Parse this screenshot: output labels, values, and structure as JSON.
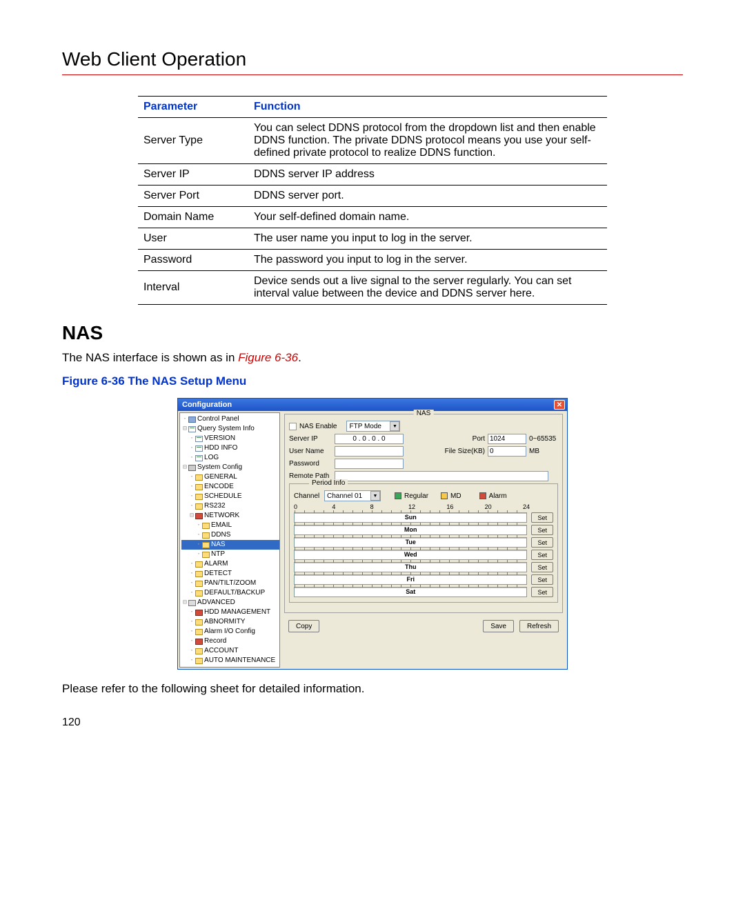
{
  "colors": {
    "accent_red": "#cc0000",
    "link_blue": "#0033cc",
    "win_titlebar_top": "#3b77e1",
    "win_titlebar_bottom": "#1e54c7",
    "win_body": "#ece9d8",
    "xp_close": "#e85232",
    "input_border": "#7f9db9",
    "sel_bg": "#316ac5",
    "folder_yellow": "#fddc7a",
    "folder_red": "#d24a3a",
    "swatch_green": "#3aa757",
    "swatch_yellow": "#f7c948",
    "swatch_red": "#d24a3a"
  },
  "page": {
    "title": "Web Client Operation",
    "section_heading": "NAS",
    "body_before_ref": "The NAS interface is shown as in ",
    "figure_ref": "Figure 6-36",
    "body_after_ref": ".",
    "figure_caption": "Figure 6-36 The NAS Setup Menu",
    "post_figure_text": "Please refer to the following sheet for detailed information.",
    "page_number": "120"
  },
  "table": {
    "headers": {
      "param": "Parameter",
      "func": "Function"
    },
    "rows": [
      {
        "param": "Server Type",
        "func": "You can select DDNS protocol from the dropdown list and then enable DDNS function. The private DDNS protocol means you use your self-defined private protocol to realize DDNS function."
      },
      {
        "param": "Server IP",
        "func": "DDNS server IP address"
      },
      {
        "param": "Server Port",
        "func": "DDNS server port."
      },
      {
        "param": "Domain Name",
        "func": "Your self-defined domain name."
      },
      {
        "param": "User",
        "func": "The user name you input to log in the server."
      },
      {
        "param": "Password",
        "func": "The password you input to log in the server."
      },
      {
        "param": "Interval",
        "func": "Device sends out a live signal to the server regularly. You can set interval value between the device and DDNS server here."
      }
    ]
  },
  "screenshot": {
    "window_title": "Configuration",
    "tree": {
      "root": "Control Panel",
      "groups": [
        {
          "label": "Query System Info",
          "icon": "page",
          "children": [
            {
              "label": "VERSION",
              "icon": "page"
            },
            {
              "label": "HDD INFO",
              "icon": "page"
            },
            {
              "label": "LOG",
              "icon": "page"
            }
          ]
        },
        {
          "label": "System Config",
          "icon": "tool",
          "children": [
            {
              "label": "GENERAL",
              "icon": "folder-y"
            },
            {
              "label": "ENCODE",
              "icon": "folder-y"
            },
            {
              "label": "SCHEDULE",
              "icon": "folder-y"
            },
            {
              "label": "RS232",
              "icon": "folder-y"
            },
            {
              "label": "NETWORK",
              "icon": "folder-r",
              "children": [
                {
                  "label": "EMAIL",
                  "icon": "folder-y"
                },
                {
                  "label": "DDNS",
                  "icon": "folder-y"
                },
                {
                  "label": "NAS",
                  "icon": "folder-y",
                  "selected": true
                },
                {
                  "label": "NTP",
                  "icon": "folder-y"
                }
              ]
            },
            {
              "label": "ALARM",
              "icon": "folder-y"
            },
            {
              "label": "DETECT",
              "icon": "folder-y"
            },
            {
              "label": "PAN/TILT/ZOOM",
              "icon": "folder-y"
            },
            {
              "label": "DEFAULT/BACKUP",
              "icon": "folder-y"
            }
          ]
        },
        {
          "label": "ADVANCED",
          "icon": "gears",
          "children": [
            {
              "label": "HDD MANAGEMENT",
              "icon": "folder-r"
            },
            {
              "label": "ABNORMITY",
              "icon": "folder-y"
            },
            {
              "label": "Alarm I/O Config",
              "icon": "folder-y"
            },
            {
              "label": "Record",
              "icon": "folder-r"
            },
            {
              "label": "ACCOUNT",
              "icon": "folder-y"
            },
            {
              "label": "AUTO MAINTENANCE",
              "icon": "folder-y"
            }
          ]
        }
      ]
    },
    "nas": {
      "group_title": "NAS",
      "labels": {
        "nas_enable": "NAS Enable",
        "server_ip": "Server IP",
        "user_name": "User Name",
        "password": "Password",
        "remote_path": "Remote Path",
        "port": "Port",
        "file_size": "File Size(KB)",
        "port_range": "0~65535",
        "file_unit": "MB"
      },
      "mode_options": [
        "FTP Mode"
      ],
      "mode_value": "FTP Mode",
      "server_ip_value": "0 . 0 . 0 . 0",
      "port_value": "1024",
      "file_size_value": "0"
    },
    "period": {
      "group_title": "Period Info",
      "channel_label": "Channel",
      "channel_value": "Channel 01",
      "legend": {
        "regular": "Regular",
        "md": "MD",
        "alarm": "Alarm"
      },
      "ruler": [
        "0",
        "4",
        "8",
        "12",
        "16",
        "20",
        "24"
      ],
      "days": [
        "Sun",
        "Mon",
        "Tue",
        "Wed",
        "Thu",
        "Fri",
        "Sat"
      ],
      "set_btn": "Set"
    },
    "buttons": {
      "copy": "Copy",
      "save": "Save",
      "refresh": "Refresh"
    }
  }
}
